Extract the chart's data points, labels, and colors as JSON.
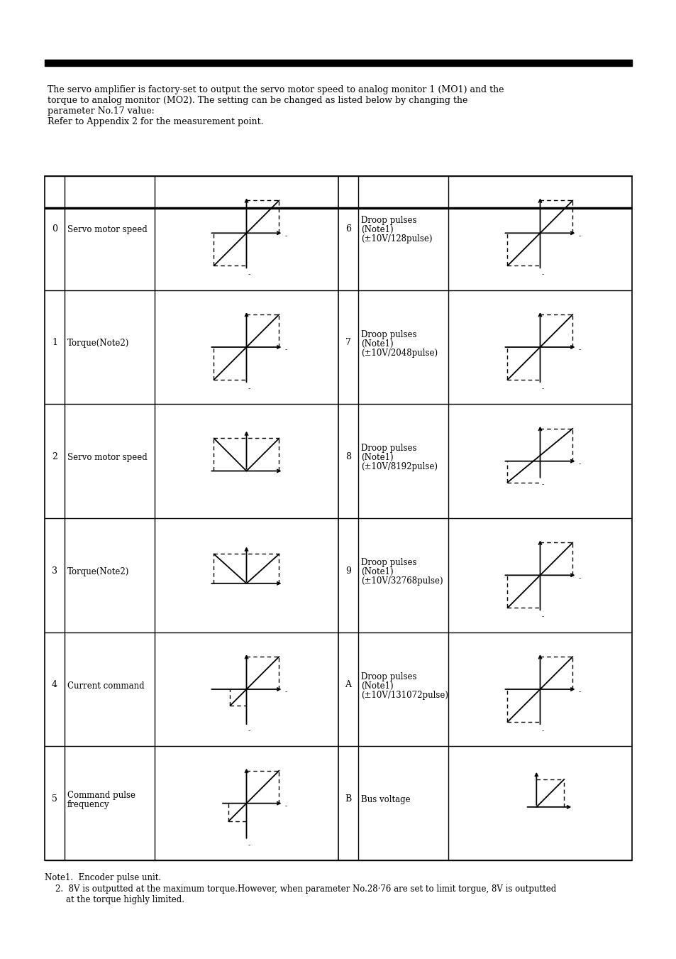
{
  "header_text": "The servo amplifier is factory-set to output the servo motor speed to analog monitor 1 (MO1) and the\ntorque to analog monitor (MO2). The setting can be changed as listed below by changing the\nparameter No.17 value:\nRefer to Appendix 2 for the measurement point.",
  "note1": "Note1.  Encoder pulse unit.",
  "note2": "    2.  8V is outputted at the maximum torque.However, when parameter No.28·76 are set to limit torgue, 8V is outputted\n        at the torque highly limited.",
  "rows_left": [
    {
      "num": "0",
      "label": "Servo motor speed",
      "type": "diag_full"
    },
    {
      "num": "1",
      "label": "Torque(Note2)",
      "type": "diag_full"
    },
    {
      "num": "2",
      "label": "Servo motor speed",
      "type": "v_shape"
    },
    {
      "num": "3",
      "label": "Torque(Note2)",
      "type": "v_shape2"
    },
    {
      "num": "4",
      "label": "Current command",
      "type": "diag_partial_pos"
    },
    {
      "num": "5",
      "label": "Command pulse\nfrequency",
      "type": "diag_partial_small"
    }
  ],
  "rows_right": [
    {
      "num": "6",
      "label": "Droop pulses\n(Note1)\n(±10V/128pulse)",
      "type": "diag_full"
    },
    {
      "num": "7",
      "label": "Droop pulses\n(Note1)\n(±10V/2048pulse)",
      "type": "diag_full"
    },
    {
      "num": "8",
      "label": "Droop pulses\n(Note1)\n(±10V/8192pulse)",
      "type": "diag_full_asym"
    },
    {
      "num": "9",
      "label": "Droop pulses\n(Note1)\n(±10V/32768pulse)",
      "type": "diag_full"
    },
    {
      "num": "A",
      "label": "Droop pulses\n(Note1)\n(±10V/131072pulse)",
      "type": "diag_full"
    },
    {
      "num": "B",
      "label": "Bus voltage",
      "type": "diag_pos_only"
    }
  ],
  "bg_color": "#ffffff"
}
